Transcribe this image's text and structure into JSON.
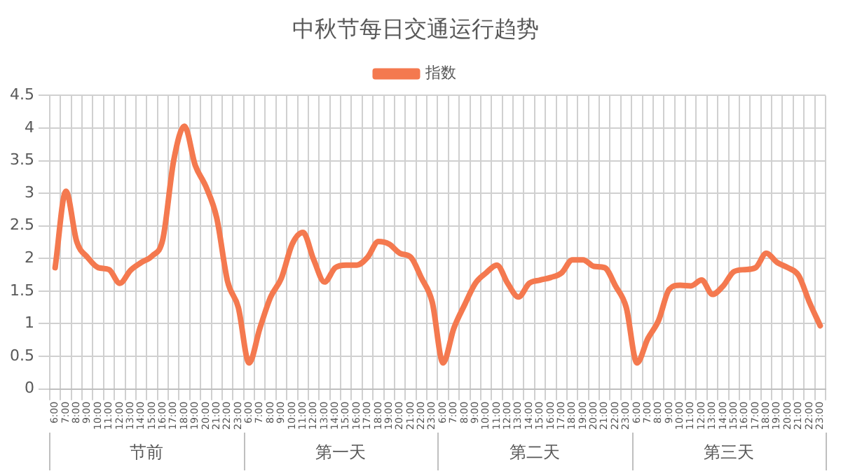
{
  "chart_data": {
    "type": "line",
    "title": "中秋节每日交通运行趋势",
    "categories": [
      "6:00",
      "7:00",
      "8:00",
      "9:00",
      "10:00",
      "11:00",
      "12:00",
      "13:00",
      "14:00",
      "15:00",
      "16:00",
      "17:00",
      "18:00",
      "19:00",
      "20:00",
      "21:00",
      "22:00",
      "23:00",
      "6:00",
      "7:00",
      "8:00",
      "9:00",
      "10:00",
      "11:00",
      "12:00",
      "13:00",
      "14:00",
      "15:00",
      "16:00",
      "17:00",
      "18:00",
      "19:00",
      "20:00",
      "21:00",
      "22:00",
      "23:00",
      "6:00",
      "7:00",
      "8:00",
      "9:00",
      "10:00",
      "11:00",
      "12:00",
      "13:00",
      "14:00",
      "15:00",
      "16:00",
      "17:00",
      "18:00",
      "19:00",
      "20:00",
      "21:00",
      "22:00",
      "23:00",
      "6:00",
      "7:00",
      "8:00",
      "9:00",
      "10:00",
      "11:00",
      "12:00",
      "13:00",
      "14:00",
      "15:00",
      "16:00",
      "17:00",
      "18:00",
      "19:00",
      "20:00",
      "21:00",
      "22:00",
      "23:00"
    ],
    "series": [
      {
        "name": "指数",
        "color": "#f4794f",
        "values": [
          1.86,
          3.03,
          2.26,
          2.02,
          1.86,
          1.83,
          1.62,
          1.82,
          1.94,
          2.04,
          2.3,
          3.5,
          4.03,
          3.43,
          3.1,
          2.62,
          1.65,
          1.25,
          0.4,
          0.93,
          1.41,
          1.7,
          2.22,
          2.4,
          1.98,
          1.64,
          1.86,
          1.9,
          1.9,
          2.02,
          2.26,
          2.22,
          2.08,
          2.02,
          1.7,
          1.33,
          0.4,
          0.93,
          1.29,
          1.62,
          1.78,
          1.9,
          1.62,
          1.41,
          1.62,
          1.67,
          1.71,
          1.78,
          1.98,
          1.98,
          1.88,
          1.86,
          1.58,
          1.25,
          0.4,
          0.77,
          1.05,
          1.53,
          1.59,
          1.58,
          1.67,
          1.45,
          1.58,
          1.8,
          1.83,
          1.86,
          2.08,
          1.94,
          1.86,
          1.74,
          1.33,
          0.97
        ]
      }
    ],
    "annotations": [
      "节前",
      "第一天",
      "第二天",
      "第三天"
    ],
    "ylim": [
      0,
      4.5
    ],
    "yticks": [
      0,
      0.5,
      1,
      1.5,
      2,
      2.5,
      3,
      3.5,
      4,
      4.5
    ],
    "grid": true,
    "legend": "top",
    "marker": "none",
    "line_style": "solid"
  }
}
